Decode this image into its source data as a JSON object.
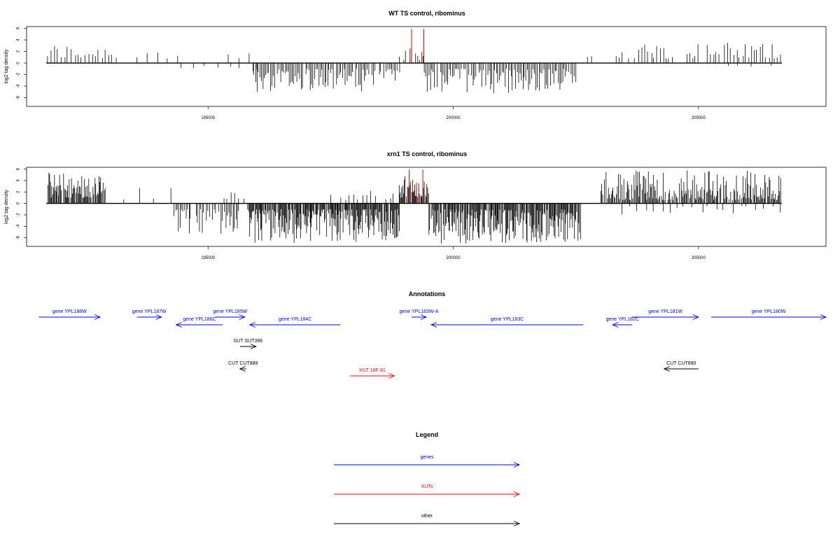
{
  "chart_data": [
    {
      "type": "bar",
      "title": "WT TS control, ribominus",
      "xlabel": "",
      "ylabel": "log2 tag density",
      "xlim": [
        191300,
        207600
      ],
      "ylim": [
        -7.5,
        6.3
      ],
      "xticks": [
        195000,
        200000,
        205000
      ],
      "yticks": [
        6,
        4,
        2,
        0,
        -2,
        -4,
        -6
      ],
      "baseline": [
        191700,
        206700
      ],
      "series": [
        {
          "color": "#000000",
          "regions": [
            {
              "strand": "+",
              "from": 191700,
              "to": 193100,
              "step": 70,
              "min": 0.8,
              "max": 3.4
            },
            {
              "strand": "+",
              "from": 193300,
              "to": 194300,
              "step": 200,
              "min": 0.8,
              "max": 2.1
            },
            {
              "strand": "-",
              "from": 194300,
              "to": 195900,
              "step": 260,
              "min": 0.5,
              "max": 1.6
            },
            {
              "strand": "+",
              "from": 195400,
              "to": 195800,
              "step": 200,
              "min": 0.8,
              "max": 2.0
            },
            {
              "strand": "-",
              "from": 195900,
              "to": 198900,
              "step": 30,
              "min": 1.0,
              "max": 5.0
            },
            {
              "strand": "+",
              "from": 198900,
              "to": 199400,
              "step": 40,
              "min": 0.5,
              "max": 2.8
            },
            {
              "strand": "-",
              "from": 199400,
              "to": 202500,
              "step": 30,
              "min": 1.0,
              "max": 5.2
            },
            {
              "strand": "+",
              "from": 202700,
              "to": 202800,
              "step": 100,
              "min": 1.0,
              "max": 1.5
            },
            {
              "strand": "+",
              "from": 203300,
              "to": 206700,
              "step": 60,
              "min": 0.8,
              "max": 3.6
            },
            {
              "strand": "-",
              "from": 205500,
              "to": 206600,
              "step": 280,
              "min": 0.4,
              "max": 1.0
            }
          ]
        },
        {
          "color": "#ff0000",
          "spikes": [
            {
              "x": 199150,
              "y": 5.9
            },
            {
              "x": 199400,
              "y": 5.9
            }
          ]
        }
      ]
    },
    {
      "type": "bar",
      "title": "xrn1 TS control, ribominus",
      "xlabel": "",
      "ylabel": "log2 tag density",
      "xlim": [
        191300,
        207600
      ],
      "ylim": [
        -7.5,
        6.3
      ],
      "xticks": [
        195000,
        200000,
        205000
      ],
      "yticks": [
        6,
        4,
        2,
        0,
        -2,
        -4,
        -6
      ],
      "baseline": [
        191700,
        206700
      ],
      "series": [
        {
          "color": "#000000",
          "regions": [
            {
              "strand": "+",
              "from": 191700,
              "to": 192900,
              "step": 16,
              "min": 1.0,
              "max": 5.4
            },
            {
              "strand": "+",
              "from": 193200,
              "to": 194300,
              "step": 300,
              "min": 0.5,
              "max": 2.8
            },
            {
              "strand": "-",
              "from": 194300,
              "to": 195700,
              "step": 30,
              "min": 1.0,
              "max": 5.5
            },
            {
              "strand": "+",
              "from": 195300,
              "to": 195700,
              "step": 80,
              "min": 0.8,
              "max": 2.3
            },
            {
              "strand": "-",
              "from": 195800,
              "to": 198900,
              "step": 14,
              "min": 1.0,
              "max": 7.0
            },
            {
              "strand": "+",
              "from": 197500,
              "to": 198900,
              "step": 90,
              "min": 0.6,
              "max": 3.2
            },
            {
              "strand": "+",
              "from": 198900,
              "to": 199500,
              "step": 14,
              "min": 1.0,
              "max": 4.8
            },
            {
              "strand": "-",
              "from": 199500,
              "to": 202600,
              "step": 14,
              "min": 1.0,
              "max": 7.0
            },
            {
              "strand": "+",
              "from": 203000,
              "to": 206700,
              "step": 18,
              "min": 0.6,
              "max": 5.8
            },
            {
              "strand": "-",
              "from": 203400,
              "to": 206600,
              "step": 160,
              "min": 0.4,
              "max": 2.0
            }
          ]
        },
        {
          "color": "#ff0000",
          "spikes": [
            {
              "x": 199100,
              "y": 5.9
            },
            {
              "x": 199380,
              "y": 5.9
            },
            {
              "x": 199250,
              "y": 3.6
            }
          ]
        }
      ]
    },
    {
      "type": "table",
      "title": "Annotations",
      "xlim": [
        191300,
        207600
      ],
      "features": [
        {
          "label": "gene YPL188W",
          "start": 191550,
          "end": 192800,
          "strand": "+",
          "color": "#0000ff",
          "row": 0
        },
        {
          "label": "gene YPL187W",
          "start": 193550,
          "end": 194050,
          "strand": "+",
          "color": "#0000ff",
          "row": 0
        },
        {
          "label": "gene YPL185W",
          "start": 195150,
          "end": 195750,
          "strand": "+",
          "color": "#0000ff",
          "row": 0
        },
        {
          "label": "gene YPL186C",
          "start": 194350,
          "end": 195300,
          "strand": "-",
          "color": "#0000ff",
          "row": 1
        },
        {
          "label": "gene YPL184C",
          "start": 195850,
          "end": 197700,
          "strand": "-",
          "color": "#0000ff",
          "row": 1
        },
        {
          "label": "gene YPL183W-A",
          "start": 199150,
          "end": 199450,
          "strand": "+",
          "color": "#0000ff",
          "row": 0
        },
        {
          "label": "gene YPL183C",
          "start": 199550,
          "end": 202650,
          "strand": "-",
          "color": "#0000ff",
          "row": 1
        },
        {
          "label": "gene YPL182C",
          "start": 203250,
          "end": 203650,
          "strand": "-",
          "color": "#0000ff",
          "row": 1
        },
        {
          "label": "gene YPL181W",
          "start": 203650,
          "end": 205000,
          "strand": "+",
          "color": "#0000ff",
          "row": 0
        },
        {
          "label": "gene YPL180W",
          "start": 205260,
          "end": 207600,
          "strand": "+",
          "color": "#0000ff",
          "row": 0
        },
        {
          "label": "SUT SUT396",
          "start": 195650,
          "end": 195980,
          "strand": "+",
          "color": "#000000",
          "row": 2
        },
        {
          "label": "CUT CUT889",
          "start": 195650,
          "end": 195780,
          "strand": "-",
          "color": "#000000",
          "row": 3
        },
        {
          "label": "CUT CUT890",
          "start": 204300,
          "end": 205000,
          "strand": "-",
          "color": "#000000",
          "row": 3
        },
        {
          "label": "XUT 16F-81",
          "start": 197900,
          "end": 198800,
          "strand": "+",
          "color": "#ff0000",
          "row": 4
        }
      ]
    }
  ],
  "legend": {
    "title": "Legend",
    "items": [
      {
        "label": "genes",
        "color": "#0000ff"
      },
      {
        "label": "XUTs",
        "color": "#ff0000"
      },
      {
        "label": "other",
        "color": "#000000"
      }
    ]
  }
}
